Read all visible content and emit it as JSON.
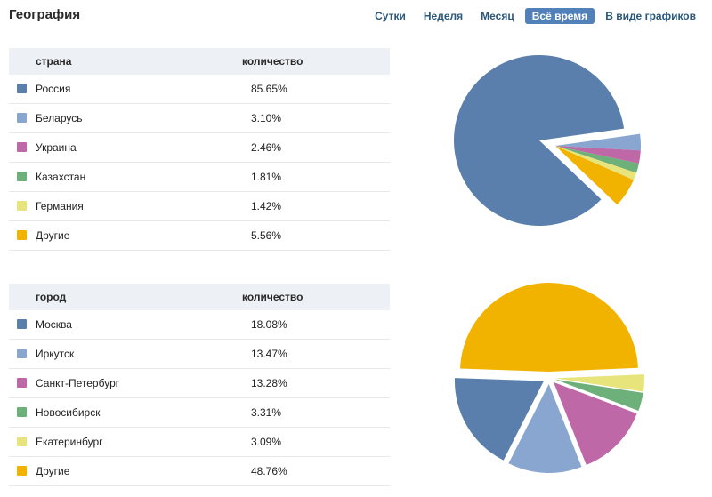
{
  "header": {
    "title": "География",
    "tabs": [
      {
        "label": "Сутки",
        "active": false
      },
      {
        "label": "Неделя",
        "active": false
      },
      {
        "label": "Месяц",
        "active": false
      },
      {
        "label": "Всё время",
        "active": true
      },
      {
        "label": "В виде графиков",
        "active": false
      }
    ]
  },
  "colors": {
    "blue": "#5b7fad",
    "light_blue": "#88a6d0",
    "magenta": "#bf68a8",
    "green": "#6db07a",
    "yellow": "#e6e47a",
    "orange": "#f2b200"
  },
  "country_table": {
    "col_name": "страна",
    "col_value": "количество",
    "rows": [
      {
        "name": "Россия",
        "value": "85.65%",
        "color": "#5b7fad"
      },
      {
        "name": "Беларусь",
        "value": "3.10%",
        "color": "#88a6d0"
      },
      {
        "name": "Украина",
        "value": "2.46%",
        "color": "#bf68a8"
      },
      {
        "name": "Казахстан",
        "value": "1.81%",
        "color": "#6db07a"
      },
      {
        "name": "Германия",
        "value": "1.42%",
        "color": "#e6e47a"
      },
      {
        "name": "Другие",
        "value": "5.56%",
        "color": "#f2b200"
      }
    ]
  },
  "city_table": {
    "col_name": "город",
    "col_value": "количество",
    "rows": [
      {
        "name": "Москва",
        "value": "18.08%",
        "color": "#5b7fad"
      },
      {
        "name": "Иркутск",
        "value": "13.47%",
        "color": "#88a6d0"
      },
      {
        "name": "Санкт-Петербург",
        "value": "13.28%",
        "color": "#bf68a8"
      },
      {
        "name": "Новосибирск",
        "value": "3.31%",
        "color": "#6db07a"
      },
      {
        "name": "Екатеринбург",
        "value": "3.09%",
        "color": "#e6e47a"
      },
      {
        "name": "Другие",
        "value": "48.76%",
        "color": "#f2b200"
      }
    ]
  },
  "chart_data": [
    {
      "type": "pie",
      "categories": [
        "Россия",
        "Беларусь",
        "Украина",
        "Казахстан",
        "Германия",
        "Другие"
      ],
      "values": [
        85.65,
        3.1,
        2.46,
        1.81,
        1.42,
        5.56
      ],
      "colors": [
        "#5b7fad",
        "#88a6d0",
        "#bf68a8",
        "#6db07a",
        "#e6e47a",
        "#f2b200"
      ],
      "exploded_slices": [
        "Беларусь",
        "Украина",
        "Казахстан",
        "Германия",
        "Другие"
      ]
    },
    {
      "type": "pie",
      "categories": [
        "Москва",
        "Иркутск",
        "Санкт-Петербург",
        "Новосибирск",
        "Екатеринбург",
        "Другие"
      ],
      "values": [
        18.08,
        13.47,
        13.28,
        3.31,
        3.09,
        48.76
      ],
      "colors": [
        "#5b7fad",
        "#88a6d0",
        "#bf68a8",
        "#6db07a",
        "#e6e47a",
        "#f2b200"
      ],
      "exploded_slices": [
        "Москва",
        "Иркутск",
        "Санкт-Петербург",
        "Новосибирск",
        "Екатеринбург",
        "Другие"
      ]
    }
  ]
}
